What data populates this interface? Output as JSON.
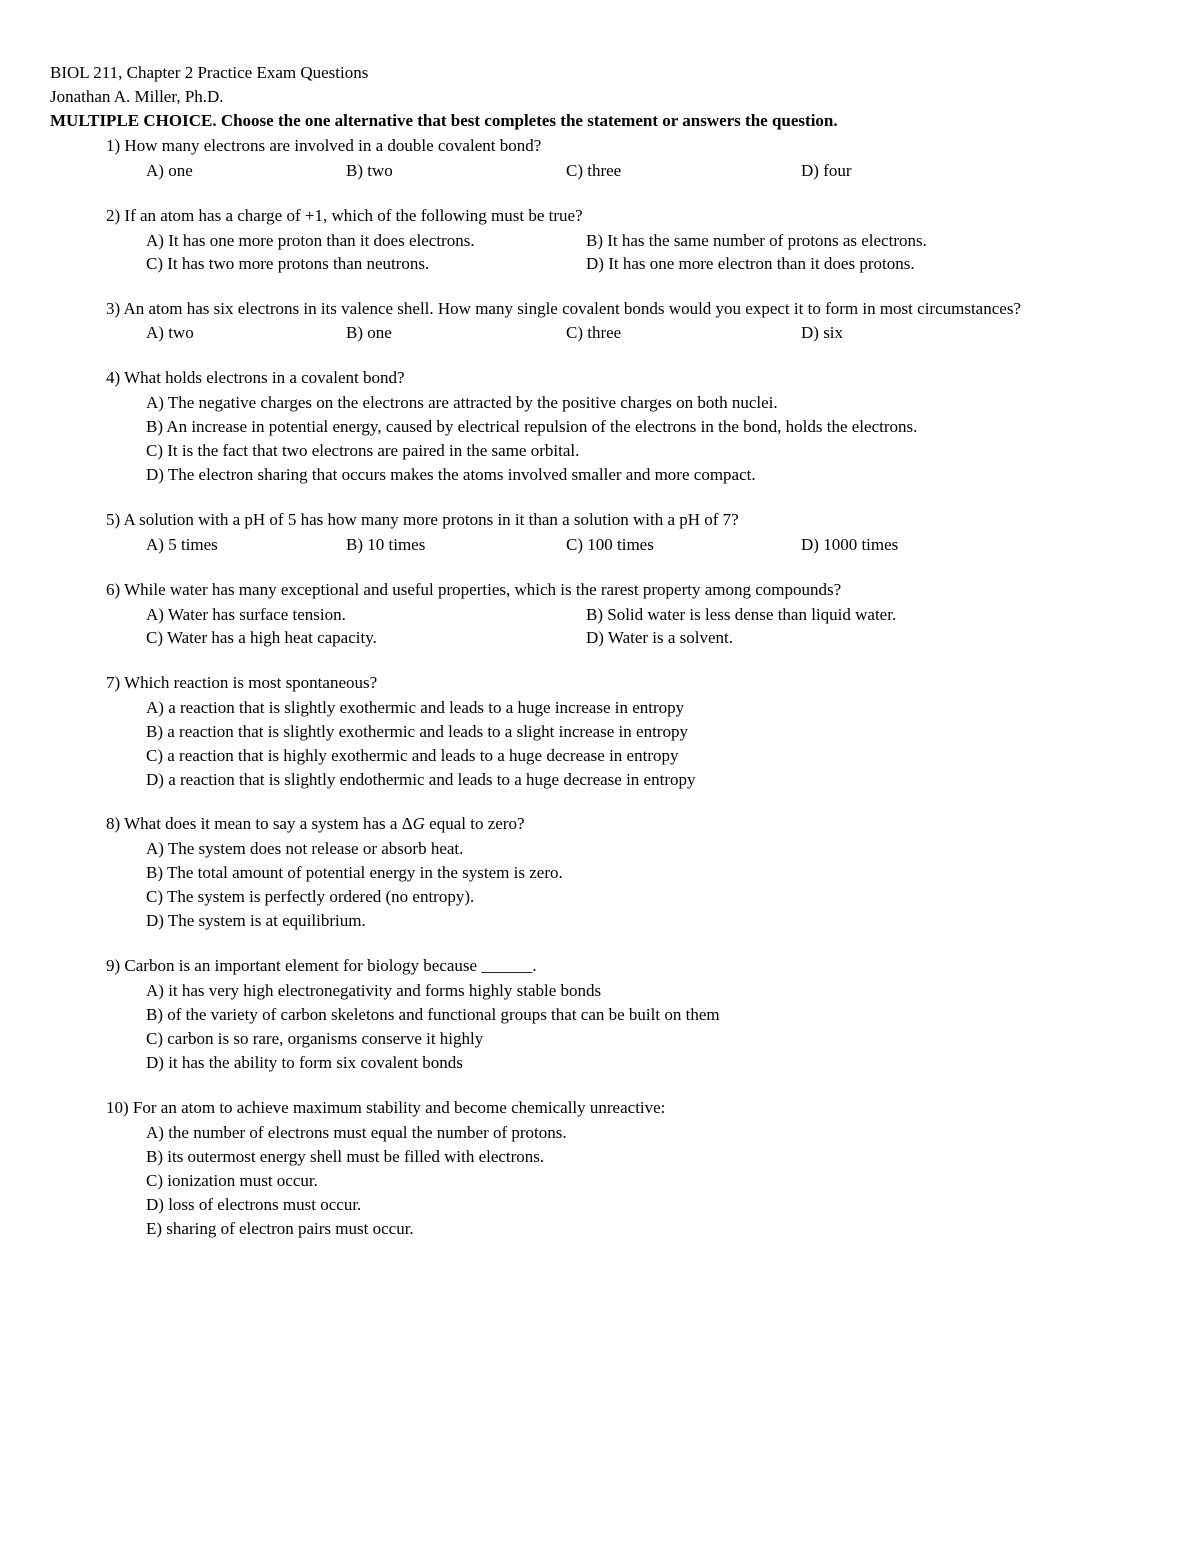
{
  "header": {
    "line1": "BIOL 211, Chapter 2 Practice Exam Questions",
    "line2": "Jonathan A. Miller, Ph.D.",
    "instructions": "MULTIPLE CHOICE.  Choose the one alternative that best completes the statement or answers the question."
  },
  "questions": [
    {
      "num": "1)",
      "text": "How many electrons are involved in a double covalent bond?",
      "layout": "row4",
      "opts": [
        "A) one",
        "B) two",
        "C) three",
        "D) four"
      ]
    },
    {
      "num": "2)",
      "text": "If an atom has a charge of +1, which of the following must be true?",
      "layout": "col2",
      "opts": [
        "A) It has one more proton than it does electrons.",
        "B) It has the same number of protons as electrons.",
        "C) It has two more protons than neutrons.",
        "D) It has one more electron than it does protons."
      ]
    },
    {
      "num": "3)",
      "text": "An atom has six electrons in its valence shell. How many single covalent bonds would you expect it to form in most circumstances?",
      "layout": "row4",
      "opts": [
        "A) two",
        "B) one",
        "C) three",
        "D) six"
      ]
    },
    {
      "num": "4)",
      "text": "What holds electrons in a covalent bond?",
      "layout": "stack",
      "opts": [
        "A) The negative charges on the electrons are attracted by the positive charges on both nuclei.",
        "B) An increase in potential energy, caused by electrical repulsion of the electrons in the bond, holds the electrons.",
        "C) It is the fact that two electrons are paired in the same orbital.",
        "D) The electron sharing that occurs makes the atoms involved smaller and more compact."
      ]
    },
    {
      "num": "5)",
      "text": "A solution with a pH of 5 has how many more protons in it than a solution with a pH of 7?",
      "layout": "row4",
      "opts": [
        "A) 5 times",
        "B) 10 times",
        "C) 100 times",
        "D) 1000 times"
      ]
    },
    {
      "num": "6)",
      "text": "While water has many exceptional and useful properties, which is the rarest property among compounds?",
      "layout": "col2",
      "opts": [
        "A) Water has surface tension.",
        "B) Solid water is less dense than liquid water.",
        "C) Water has a high heat capacity.",
        "D) Water is a solvent."
      ]
    },
    {
      "num": "7)",
      "text": "Which reaction is most spontaneous?",
      "layout": "stack",
      "opts": [
        "A) a reaction that is slightly exothermic and leads to a huge increase in entropy",
        "B) a reaction that is slightly exothermic and leads to a slight increase in entropy",
        "C) a reaction that is highly exothermic and leads to a huge decrease in entropy",
        "D) a reaction that is slightly endothermic and leads to a huge decrease in entropy"
      ]
    },
    {
      "num": "8)",
      "text_pre": "What does it mean to say a system has a Δ",
      "text_italic": "G",
      "text_post": " equal to zero?",
      "layout": "stack",
      "opts": [
        "A) The system does not release or absorb heat.",
        "B) The total amount of potential energy in the system is zero.",
        "C) The system is perfectly ordered (no entropy).",
        "D) The system is at equilibrium."
      ]
    },
    {
      "num": "9)",
      "text": "Carbon is an important element for biology because ______.",
      "layout": "stack",
      "opts": [
        "A) it has very high electronegativity and forms highly stable bonds",
        "B) of the variety of carbon skeletons and functional groups that can be built on them",
        "C) carbon is so rare, organisms conserve it highly",
        "D) it has the ability to form six covalent bonds"
      ]
    },
    {
      "num": "10)",
      "text": "For an atom to achieve maximum stability and become chemically unreactive:",
      "layout": "stack",
      "opts": [
        "A) the number of electrons must equal the number of protons.",
        "B) its outermost energy shell must be filled with electrons.",
        "C) ionization must occur.",
        "D) loss of electrons must occur.",
        "E) sharing of electron pairs must occur."
      ]
    }
  ]
}
